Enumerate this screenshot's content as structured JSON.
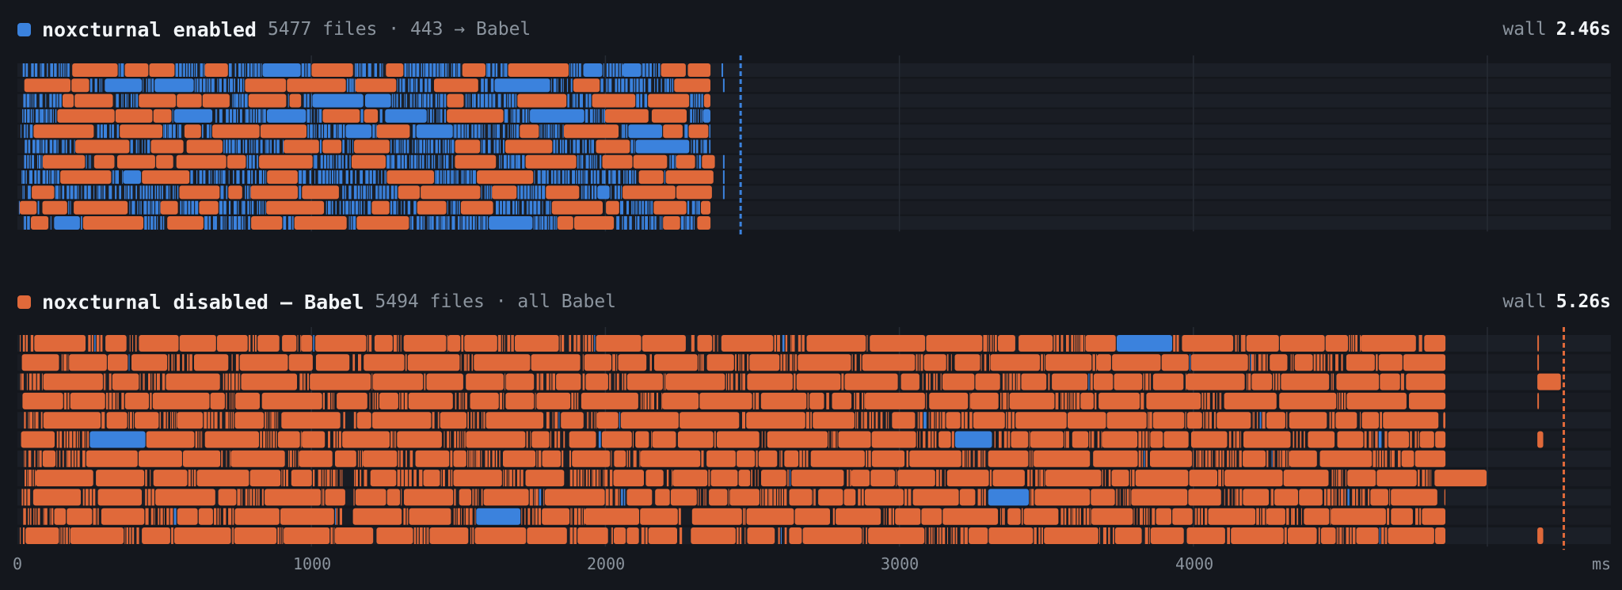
{
  "colors": {
    "native": "#3b82dd",
    "babel": "#e0693a",
    "background": "#14171d",
    "lane": "#1b1f27",
    "grid": "#262b34"
  },
  "panels": [
    {
      "title": "noxcturnal enabled",
      "meta": "5477 files · 443 → Babel",
      "wall_label": "wall",
      "wall_value": "2.46s",
      "color": "native",
      "lanes": 11
    },
    {
      "title": "noxcturnal disabled — Babel",
      "meta": "5494 files · all Babel",
      "wall_label": "wall",
      "wall_value": "5.26s",
      "color": "babel",
      "lanes": 11
    }
  ],
  "axis": {
    "ticks": [
      "0",
      "1000",
      "2000",
      "3000",
      "4000"
    ],
    "unit": "ms"
  },
  "chart_data": {
    "type": "timeline",
    "x_unit": "ms",
    "xlim": [
      0,
      5440
    ],
    "series": [
      {
        "name": "noxcturnal enabled",
        "files": 5477,
        "babel_files": 443,
        "wall_s": 2.46,
        "workers": 11,
        "worker_end_ms": [
          2360,
          2360,
          2360,
          2360,
          2360,
          2360,
          2375,
          2370,
          2365,
          2360,
          2360
        ],
        "stragglers_ms": [
          2395,
          2400,
          2400,
          2400,
          2400
        ],
        "wall_marker_ms": 2460
      },
      {
        "name": "noxcturnal disabled — Babel",
        "files": 5494,
        "babel_files": 5494,
        "wall_s": 5.26,
        "workers": 11,
        "worker_end_ms": [
          4860,
          4860,
          4860,
          4860,
          4860,
          4860,
          4860,
          5000,
          4860,
          4860,
          4860
        ],
        "late_tasks_ms": [
          [
            5170,
            5175
          ],
          [
            5170,
            5175
          ],
          [
            5170,
            5250
          ],
          [
            5170,
            5175
          ],
          [],
          [
            5170,
            5190
          ],
          [],
          [],
          [],
          [],
          [
            5170,
            5190
          ]
        ],
        "wall_marker_ms": 5260
      }
    ]
  }
}
